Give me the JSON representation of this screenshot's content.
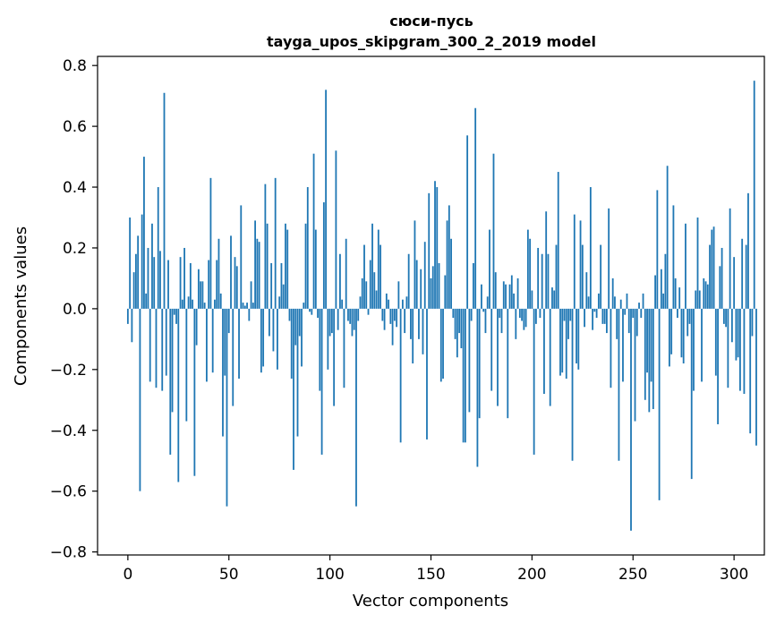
{
  "chart_data": {
    "type": "bar",
    "title": "сюси-пусь",
    "subtitle": "tayga_upos_skipgram_300_2_2019 model",
    "xlabel": "Vector components",
    "ylabel": "Components values",
    "xlim": [
      -15,
      315
    ],
    "ylim": [
      -0.81,
      0.83
    ],
    "x_ticks": [
      0,
      50,
      100,
      150,
      200,
      250,
      300
    ],
    "x_tick_labels": [
      "0",
      "50",
      "100",
      "150",
      "200",
      "250",
      "300"
    ],
    "y_ticks": [
      -0.8,
      -0.6,
      -0.4,
      -0.2,
      0.0,
      0.2,
      0.4,
      0.6,
      0.8
    ],
    "y_tick_labels": [
      "−0.8",
      "−0.6",
      "−0.4",
      "−0.2",
      "0.0",
      "0.2",
      "0.4",
      "0.6",
      "0.8"
    ],
    "bar_color": "#1f77b4",
    "grid": false,
    "values": [
      -0.05,
      0.3,
      -0.11,
      0.12,
      0.18,
      0.24,
      -0.6,
      0.31,
      0.5,
      0.05,
      0.2,
      -0.24,
      0.28,
      0.17,
      -0.26,
      0.4,
      0.19,
      -0.27,
      0.71,
      -0.22,
      0.16,
      -0.48,
      -0.34,
      -0.02,
      -0.05,
      -0.57,
      0.17,
      0.03,
      0.2,
      -0.37,
      0.04,
      0.15,
      0.03,
      -0.55,
      -0.12,
      0.13,
      0.09,
      0.09,
      0.02,
      -0.24,
      0.16,
      0.43,
      -0.21,
      0.03,
      0.16,
      0.23,
      0.05,
      -0.42,
      -0.22,
      -0.65,
      -0.08,
      0.24,
      -0.32,
      0.17,
      0.14,
      -0.23,
      0.34,
      0.02,
      0.01,
      0.02,
      -0.04,
      0.09,
      0.02,
      0.29,
      0.23,
      0.22,
      -0.21,
      -0.19,
      0.41,
      0.28,
      -0.09,
      0.15,
      -0.14,
      0.43,
      -0.2,
      0.04,
      0.15,
      0.08,
      0.28,
      0.26,
      -0.04,
      -0.23,
      -0.53,
      -0.12,
      -0.42,
      -0.09,
      -0.19,
      0.02,
      0.28,
      0.4,
      -0.01,
      -0.02,
      0.51,
      0.26,
      -0.03,
      -0.27,
      -0.48,
      0.35,
      0.72,
      -0.2,
      -0.09,
      -0.08,
      -0.32,
      0.52,
      -0.07,
      0.18,
      0.03,
      -0.26,
      0.23,
      -0.04,
      -0.05,
      -0.09,
      -0.07,
      -0.65,
      -0.04,
      0.04,
      0.1,
      0.21,
      0.09,
      -0.02,
      0.16,
      0.28,
      0.12,
      0.06,
      0.26,
      0.21,
      -0.04,
      -0.07,
      0.05,
      0.03,
      -0.05,
      -0.12,
      -0.04,
      -0.06,
      0.09,
      -0.44,
      0.03,
      -0.08,
      0.04,
      0.18,
      -0.1,
      -0.18,
      0.29,
      0.16,
      -0.1,
      0.13,
      -0.15,
      0.22,
      -0.43,
      0.38,
      0.1,
      0.14,
      0.42,
      0.4,
      0.15,
      -0.24,
      -0.23,
      0.11,
      0.29,
      0.34,
      0.23,
      -0.03,
      -0.1,
      -0.16,
      -0.08,
      -0.13,
      -0.44,
      -0.44,
      0.57,
      -0.34,
      -0.04,
      0.15,
      0.66,
      -0.52,
      -0.36,
      0.08,
      -0.01,
      -0.08,
      0.04,
      0.26,
      -0.27,
      0.51,
      0.12,
      -0.32,
      -0.03,
      -0.08,
      0.09,
      0.08,
      -0.36,
      0.08,
      0.11,
      0.05,
      -0.1,
      0.1,
      -0.03,
      -0.04,
      -0.07,
      -0.06,
      0.26,
      0.23,
      0.06,
      -0.48,
      -0.05,
      0.2,
      -0.03,
      0.18,
      -0.28,
      0.32,
      0.18,
      -0.32,
      0.07,
      0.06,
      0.21,
      0.45,
      -0.22,
      -0.21,
      -0.04,
      -0.23,
      -0.1,
      -0.04,
      -0.5,
      0.31,
      -0.18,
      -0.2,
      0.29,
      0.21,
      -0.06,
      0.12,
      0.04,
      0.4,
      -0.07,
      -0.01,
      -0.03,
      0.05,
      0.21,
      -0.05,
      -0.05,
      -0.08,
      0.33,
      -0.26,
      0.1,
      0.04,
      -0.1,
      -0.5,
      0.03,
      -0.24,
      -0.02,
      0.05,
      -0.08,
      -0.73,
      -0.03,
      -0.37,
      -0.09,
      0.02,
      -0.03,
      0.05,
      -0.3,
      -0.21,
      -0.34,
      -0.24,
      -0.33,
      0.11,
      0.39,
      -0.63,
      0.13,
      0.05,
      0.18,
      0.47,
      -0.19,
      -0.15,
      0.34,
      0.1,
      -0.03,
      0.07,
      -0.16,
      -0.18,
      0.28,
      -0.09,
      -0.05,
      -0.56,
      -0.27,
      0.06,
      0.3,
      0.06,
      -0.24,
      0.1,
      0.09,
      0.08,
      0.21,
      0.26,
      0.27,
      -0.22,
      -0.38,
      0.14,
      0.2,
      -0.05,
      -0.06,
      -0.26,
      0.33,
      -0.11,
      0.17,
      -0.17,
      -0.16,
      -0.27,
      0.23,
      -0.28,
      0.21,
      0.38,
      -0.41,
      -0.09,
      0.75,
      -0.45
    ]
  }
}
